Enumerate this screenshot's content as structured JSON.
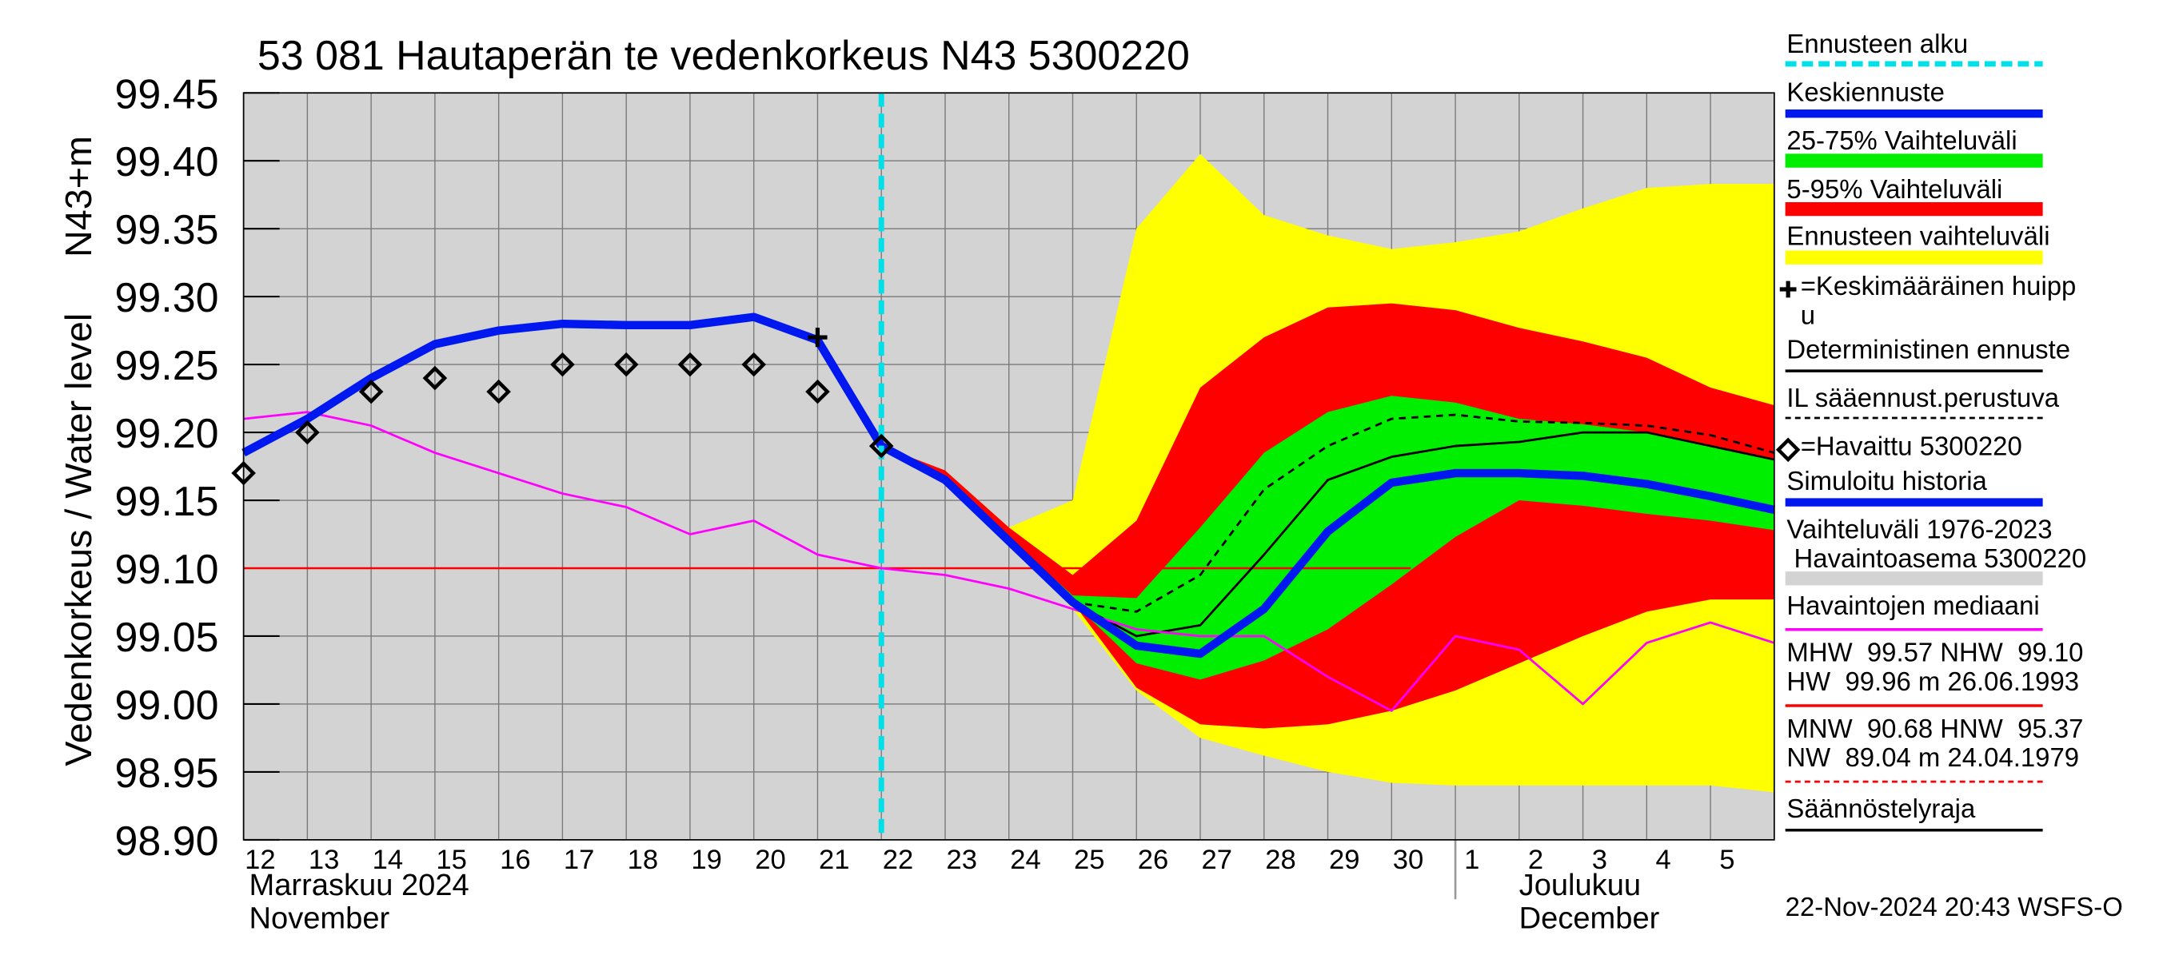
{
  "chart_data": {
    "type": "line",
    "title": "53 081 Hautaperän te vedenkorkeus N43 5300220",
    "y_label": "Vedenkorkeus / Water level",
    "y_unit": "N43+m",
    "timestamp": "22-Nov-2024 20:43 WSFS-O",
    "xlim": [
      0,
      24
    ],
    "xticks": [
      {
        "value": 0,
        "label": "12"
      },
      {
        "value": 1,
        "label": "13"
      },
      {
        "value": 2,
        "label": "14"
      },
      {
        "value": 3,
        "label": "15"
      },
      {
        "value": 4,
        "label": "16"
      },
      {
        "value": 5,
        "label": "17"
      },
      {
        "value": 6,
        "label": "18"
      },
      {
        "value": 7,
        "label": "19"
      },
      {
        "value": 8,
        "label": "20"
      },
      {
        "value": 9,
        "label": "21"
      },
      {
        "value": 10,
        "label": "22"
      },
      {
        "value": 11,
        "label": "23"
      },
      {
        "value": 12,
        "label": "24"
      },
      {
        "value": 13,
        "label": "25"
      },
      {
        "value": 14,
        "label": "26"
      },
      {
        "value": 15,
        "label": "27"
      },
      {
        "value": 16,
        "label": "28"
      },
      {
        "value": 17,
        "label": "29"
      },
      {
        "value": 18,
        "label": "30"
      },
      {
        "value": 19,
        "label": "1"
      },
      {
        "value": 20,
        "label": "2"
      },
      {
        "value": 21,
        "label": "3"
      },
      {
        "value": 22,
        "label": "4"
      },
      {
        "value": 23,
        "label": "5"
      }
    ],
    "months": [
      {
        "start": 0,
        "label": "Marraskuu 2024\nNovember"
      },
      {
        "start": 19,
        "label": "Joulukuu\nDecember"
      }
    ],
    "ylim": [
      98.9,
      99.45
    ],
    "yticks": [
      {
        "value": 98.9,
        "label": "98.90"
      },
      98.95,
      {
        "value": 99.0,
        "label": "99.00"
      },
      99.05,
      {
        "value": 99.1,
        "label": "99.10"
      },
      99.15,
      {
        "value": 99.2,
        "label": "99.20"
      },
      99.25,
      {
        "value": 99.3,
        "label": "99.30"
      },
      99.35,
      {
        "value": 99.4,
        "label": "99.40"
      },
      99.45
    ],
    "grid": true,
    "series": [
      {
        "name": "Ennusteen alku",
        "color": "#00e0e8",
        "style": "vline",
        "x": [
          10
        ]
      },
      {
        "name": "Keskiennuste",
        "color": "#0018f0",
        "style": "thick",
        "x": [
          10,
          11,
          12,
          13,
          14,
          15,
          16,
          17,
          18,
          19,
          20,
          21,
          22,
          23,
          24
        ],
        "values": [
          99.19,
          99.165,
          99.12,
          99.075,
          99.043,
          99.037,
          99.07,
          99.127,
          99.163,
          99.17,
          99.17,
          99.168,
          99.162,
          99.153,
          99.143
        ]
      },
      {
        "name": "25-75% Vaihteluväli",
        "color": "#00ee00",
        "style": "band",
        "x": [
          10,
          11,
          12,
          13,
          14,
          15,
          16,
          17,
          18,
          19,
          20,
          21,
          22,
          23,
          24
        ],
        "lower": [
          99.19,
          99.165,
          99.12,
          99.075,
          99.03,
          99.018,
          99.032,
          99.055,
          99.088,
          99.123,
          99.15,
          99.146,
          99.14,
          99.135,
          99.128
        ],
        "upper": [
          99.19,
          99.168,
          99.122,
          99.08,
          99.078,
          99.13,
          99.185,
          99.215,
          99.227,
          99.222,
          99.21,
          99.206,
          99.2,
          99.19,
          99.18
        ]
      },
      {
        "name": "5-95% Vaihteluväli",
        "color": "#ff0000",
        "style": "band",
        "x": [
          10,
          11,
          12,
          13,
          14,
          15,
          16,
          17,
          18,
          19,
          20,
          21,
          22,
          23,
          24
        ],
        "lower": [
          99.19,
          99.165,
          99.12,
          99.075,
          99.012,
          98.985,
          98.982,
          98.985,
          98.995,
          99.01,
          99.03,
          99.05,
          99.068,
          99.077,
          99.077
        ],
        "upper": [
          99.19,
          99.172,
          99.13,
          99.095,
          99.135,
          99.233,
          99.27,
          99.292,
          99.295,
          99.29,
          99.277,
          99.267,
          99.255,
          99.233,
          99.22
        ]
      },
      {
        "name": "Ennusteen vaihteluväli",
        "color": "#ffff00",
        "style": "band",
        "x": [
          10,
          11,
          12,
          13,
          14,
          15,
          16,
          17,
          18,
          19,
          20,
          21,
          22,
          23,
          24
        ],
        "lower": [
          99.19,
          99.165,
          99.12,
          99.07,
          99.01,
          98.975,
          98.962,
          98.95,
          98.942,
          98.94,
          98.94,
          98.94,
          98.94,
          98.94,
          98.935
        ],
        "upper": [
          99.19,
          99.172,
          99.13,
          99.15,
          99.35,
          99.405,
          99.36,
          99.345,
          99.335,
          99.34,
          99.348,
          99.365,
          99.38,
          99.383,
          99.383
        ]
      },
      {
        "name": "=Keskimääräinen huipp\nu",
        "color": "#000000",
        "style": "plus",
        "x": [
          9
        ],
        "values": [
          99.27
        ]
      },
      {
        "name": "Deterministinen ennuste",
        "color": "#000000",
        "style": "line",
        "x": [
          10,
          11,
          12,
          13,
          14,
          15,
          16,
          17,
          18,
          19,
          20,
          21,
          22,
          23,
          24
        ],
        "values": [
          99.19,
          99.165,
          99.12,
          99.075,
          99.05,
          99.058,
          99.11,
          99.165,
          99.182,
          99.19,
          99.193,
          99.2,
          99.2,
          99.19,
          99.18
        ]
      },
      {
        "name": "IL sääennust.perustuva",
        "color": "#000000",
        "style": "dashed",
        "x": [
          10,
          11,
          12,
          13,
          14,
          15,
          16,
          17,
          18,
          19,
          20,
          21,
          22,
          23,
          24
        ],
        "values": [
          99.19,
          99.165,
          99.12,
          99.075,
          99.068,
          99.095,
          99.158,
          99.19,
          99.21,
          99.213,
          99.208,
          99.207,
          99.205,
          99.198,
          99.185
        ]
      },
      {
        "name": "=Havaittu 5300220",
        "color": "#000000",
        "style": "diamond",
        "x": [
          0,
          1,
          2,
          3,
          4,
          5,
          6,
          7,
          8,
          9,
          10
        ],
        "values": [
          99.17,
          99.2,
          99.23,
          99.24,
          99.23,
          99.25,
          99.25,
          99.25,
          99.25,
          99.23,
          99.19
        ]
      },
      {
        "name": "Simuloitu historia",
        "color": "#0018f0",
        "style": "thick",
        "x": [
          0,
          1,
          2,
          3,
          4,
          5,
          6,
          7,
          8,
          9,
          10
        ],
        "values": [
          99.185,
          99.21,
          99.24,
          99.265,
          99.275,
          99.28,
          99.279,
          99.279,
          99.285,
          99.268,
          99.19
        ]
      },
      {
        "name": "Vaihteluväli 1976-2023\n Havaintoasema 5300220",
        "color": "#d3d3d3",
        "style": "background"
      },
      {
        "name": "Havaintojen mediaani",
        "color": "#ff00ff",
        "style": "line",
        "x": [
          0,
          1,
          2,
          3,
          4,
          5,
          6,
          7,
          8,
          9,
          10,
          11,
          12,
          13,
          14,
          15,
          16,
          17,
          18,
          19,
          20,
          21,
          22,
          23,
          24
        ],
        "values": [
          99.21,
          99.215,
          99.205,
          99.185,
          99.17,
          99.155,
          99.145,
          99.125,
          99.135,
          99.11,
          99.1,
          99.095,
          99.085,
          99.07,
          99.055,
          99.05,
          99.05,
          99.02,
          98.995,
          99.05,
          99.04,
          99.0,
          99.045,
          99.06,
          99.045
        ]
      }
    ],
    "reference_lines": [
      {
        "name": "MHW  99.57 NHW  99.10\nHW  99.96 m 26.06.1993",
        "color": "#ff0000",
        "style": "line",
        "value": 99.1,
        "xlim": [
          0,
          18.3
        ]
      },
      {
        "name": "MNW  90.68 HNW  95.37\nNW  89.04 m 24.04.1979",
        "color": "#ff0000",
        "style": "dashed"
      },
      {
        "name": "Säännöstelyraja",
        "color": "#000000",
        "style": "line"
      }
    ]
  }
}
